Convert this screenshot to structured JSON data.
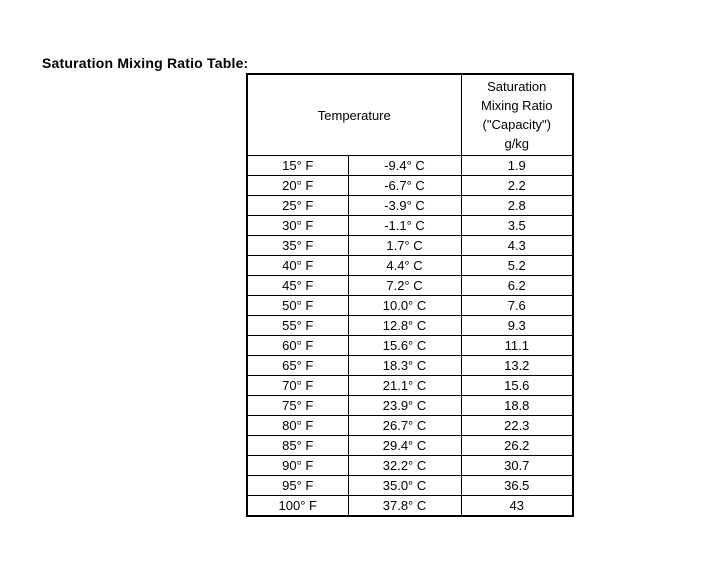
{
  "page": {
    "title": "Saturation Mixing Ratio Table:"
  },
  "colors": {
    "background": "#ffffff",
    "text": "#000000",
    "border": "#000000"
  },
  "table": {
    "header": {
      "temperature": "Temperature",
      "ratio": "Saturation\nMixing Ratio\n(\"Capacity\")\ng/kg"
    },
    "rows": [
      {
        "fahrenheit": "15° F",
        "celsius": "-9.4° C",
        "ratio": "1.9"
      },
      {
        "fahrenheit": "20° F",
        "celsius": "-6.7° C",
        "ratio": "2.2"
      },
      {
        "fahrenheit": "25° F",
        "celsius": "-3.9° C",
        "ratio": "2.8"
      },
      {
        "fahrenheit": "30° F",
        "celsius": "-1.1° C",
        "ratio": "3.5"
      },
      {
        "fahrenheit": "35° F",
        "celsius": "1.7° C",
        "ratio": "4.3"
      },
      {
        "fahrenheit": "40° F",
        "celsius": "4.4° C",
        "ratio": "5.2"
      },
      {
        "fahrenheit": "45° F",
        "celsius": "7.2° C",
        "ratio": "6.2"
      },
      {
        "fahrenheit": "50° F",
        "celsius": "10.0° C",
        "ratio": "7.6"
      },
      {
        "fahrenheit": "55° F",
        "celsius": "12.8° C",
        "ratio": "9.3"
      },
      {
        "fahrenheit": "60° F",
        "celsius": "15.6° C",
        "ratio": "11.1"
      },
      {
        "fahrenheit": "65° F",
        "celsius": "18.3° C",
        "ratio": "13.2"
      },
      {
        "fahrenheit": "70° F",
        "celsius": "21.1° C",
        "ratio": "15.6"
      },
      {
        "fahrenheit": "75° F",
        "celsius": "23.9° C",
        "ratio": "18.8"
      },
      {
        "fahrenheit": "80° F",
        "celsius": "26.7° C",
        "ratio": "22.3"
      },
      {
        "fahrenheit": "85° F",
        "celsius": "29.4° C",
        "ratio": "26.2"
      },
      {
        "fahrenheit": "90° F",
        "celsius": "32.2° C",
        "ratio": "30.7"
      },
      {
        "fahrenheit": "95° F",
        "celsius": "35.0° C",
        "ratio": "36.5"
      },
      {
        "fahrenheit": "100° F",
        "celsius": "37.8° C",
        "ratio": "43"
      }
    ]
  }
}
